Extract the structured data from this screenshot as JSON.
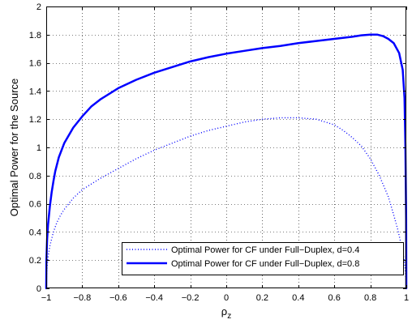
{
  "chart_data": {
    "type": "line",
    "xlabel": "ρ",
    "xlabel_sub": "z",
    "ylabel": "Optimal Power for the Source",
    "xlim": [
      -1,
      1
    ],
    "ylim": [
      0,
      2
    ],
    "xticks": [
      -1,
      -0.8,
      -0.6,
      -0.4,
      -0.2,
      0,
      0.2,
      0.4,
      0.6,
      0.8,
      1
    ],
    "xtick_labels": [
      "−1",
      "−0.8",
      "−0.6",
      "−0.4",
      "−0.2",
      "0",
      "0.2",
      "0.4",
      "0.6",
      "0.8",
      "1"
    ],
    "yticks": [
      0,
      0.2,
      0.4,
      0.6,
      0.8,
      1,
      1.2,
      1.4,
      1.6,
      1.8,
      2
    ],
    "ytick_labels": [
      "0",
      "0.2",
      "0.4",
      "0.6",
      "0.8",
      "1",
      "1.2",
      "1.4",
      "1.6",
      "1.8",
      "2"
    ],
    "grid": true,
    "legend_position": "bottom-right",
    "series": [
      {
        "name": "Optimal Power for CF under Full−Duplex, d=0.4",
        "style": "dotted",
        "color": "#0000ff",
        "x": [
          -1,
          -0.999,
          -0.995,
          -0.99,
          -0.98,
          -0.96,
          -0.94,
          -0.92,
          -0.9,
          -0.85,
          -0.8,
          -0.75,
          -0.7,
          -0.6,
          -0.5,
          -0.4,
          -0.3,
          -0.2,
          -0.1,
          0,
          0.1,
          0.2,
          0.3,
          0.4,
          0.45,
          0.5,
          0.55,
          0.6,
          0.65,
          0.7,
          0.75,
          0.8,
          0.85,
          0.9,
          0.93,
          0.95,
          0.97,
          0.98,
          0.99,
          0.995,
          0.999,
          1
        ],
        "y": [
          0,
          0.07,
          0.16,
          0.22,
          0.3,
          0.4,
          0.47,
          0.52,
          0.56,
          0.64,
          0.7,
          0.74,
          0.78,
          0.85,
          0.92,
          0.98,
          1.03,
          1.08,
          1.12,
          1.15,
          1.18,
          1.2,
          1.21,
          1.21,
          1.205,
          1.2,
          1.18,
          1.16,
          1.12,
          1.07,
          1.01,
          0.92,
          0.8,
          0.65,
          0.52,
          0.43,
          0.32,
          0.26,
          0.18,
          0.12,
          0.05,
          0
        ]
      },
      {
        "name": "Optimal Power for CF under Full−Duplex, d=0.8",
        "style": "solid",
        "color": "#0000ff",
        "x": [
          -1,
          -0.999,
          -0.995,
          -0.99,
          -0.98,
          -0.97,
          -0.96,
          -0.95,
          -0.93,
          -0.9,
          -0.85,
          -0.8,
          -0.75,
          -0.7,
          -0.6,
          -0.5,
          -0.4,
          -0.3,
          -0.2,
          -0.1,
          0,
          0.1,
          0.2,
          0.3,
          0.4,
          0.5,
          0.6,
          0.7,
          0.75,
          0.8,
          0.84,
          0.87,
          0.9,
          0.93,
          0.96,
          0.98,
          0.99,
          0.995,
          0.999,
          1
        ],
        "y": [
          0,
          0.2,
          0.35,
          0.45,
          0.58,
          0.68,
          0.76,
          0.83,
          0.93,
          1.03,
          1.14,
          1.22,
          1.29,
          1.34,
          1.42,
          1.48,
          1.53,
          1.57,
          1.61,
          1.64,
          1.665,
          1.685,
          1.705,
          1.72,
          1.74,
          1.755,
          1.77,
          1.785,
          1.795,
          1.8,
          1.8,
          1.79,
          1.77,
          1.74,
          1.67,
          1.55,
          1.35,
          1.0,
          0.5,
          0
        ]
      }
    ]
  }
}
